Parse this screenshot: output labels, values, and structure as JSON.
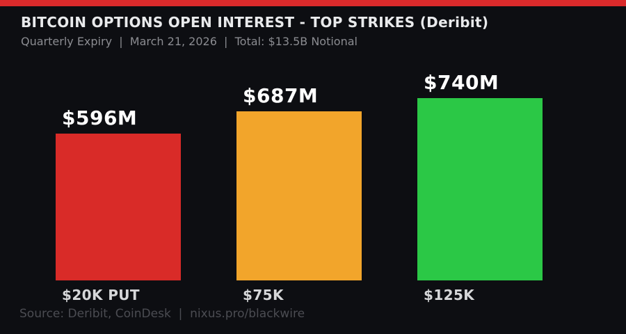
{
  "header": {
    "title": "BITCOIN OPTIONS OPEN INTEREST - TOP STRIKES (Deribit)",
    "subtitle": "Quarterly Expiry  |  March 21, 2026  |  Total: $13.5B Notional"
  },
  "footer": {
    "source": "Source: Deribit, CoinDesk  |  nixus.pro/blackwire"
  },
  "colors": {
    "background": "#0d0e12",
    "accent_stripe": "#da2a2b",
    "title_text": "#e9eaec",
    "subtitle_text": "#8b8c91",
    "value_label_text": "#ffffff",
    "x_label_text": "#d6d7d9",
    "source_text": "#4b4c52"
  },
  "chart_data": {
    "type": "bar",
    "title": "BITCOIN OPTIONS OPEN INTEREST - TOP STRIKES (Deribit)",
    "subtitle": "Quarterly Expiry | March 21, 2026 | Total: $13.5B Notional",
    "categories": [
      "$20K PUT",
      "$75K",
      "$125K"
    ],
    "values": [
      596,
      687,
      740
    ],
    "value_labels": [
      "$596M",
      "$687M",
      "$740M"
    ],
    "bar_colors": [
      "#d92b28",
      "#f2a52b",
      "#2bc846"
    ],
    "ylim": [
      0,
      740
    ],
    "grid": false,
    "legend": "none",
    "value_unit": "M",
    "annotations": [
      "Total: $13.5B Notional",
      "Source: Deribit, CoinDesk",
      "nixus.pro/blackwire"
    ]
  }
}
